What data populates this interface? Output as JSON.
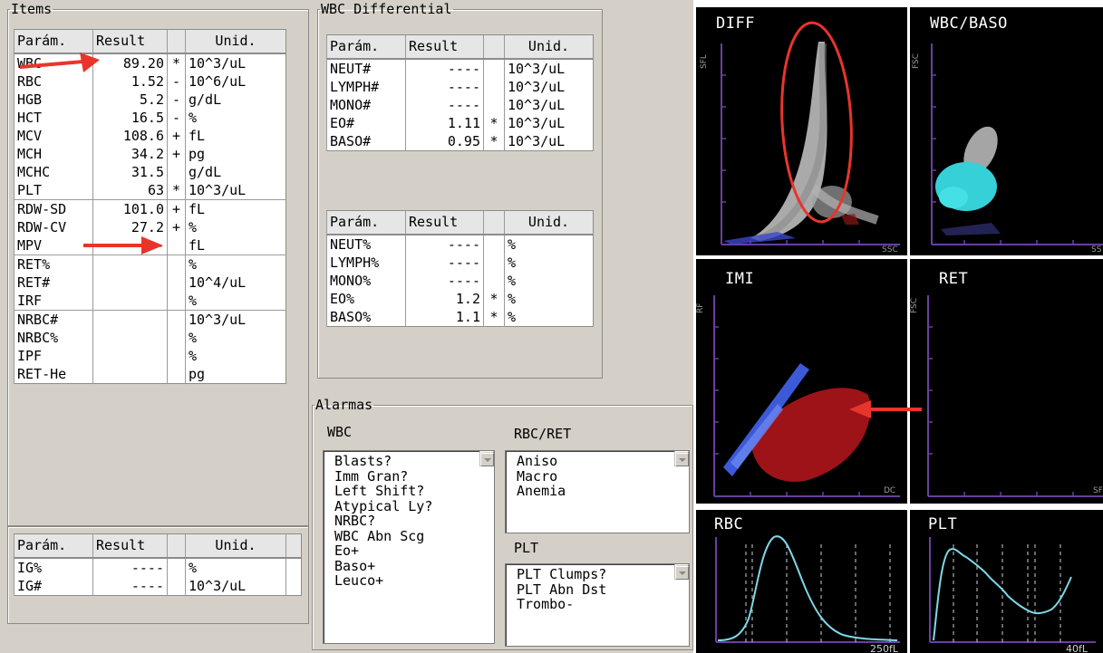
{
  "items": {
    "legend": "Items",
    "headers": [
      "Parám.",
      "Result",
      "",
      "Unid."
    ],
    "rows": [
      {
        "param": "WBC",
        "result": "89.20",
        "flag": "*",
        "unit": "10^3/uL"
      },
      {
        "param": "RBC",
        "result": "1.52",
        "flag": "-",
        "unit": "10^6/uL"
      },
      {
        "param": "HGB",
        "result": "5.2",
        "flag": "-",
        "unit": "g/dL"
      },
      {
        "param": "HCT",
        "result": "16.5",
        "flag": "-",
        "unit": "%"
      },
      {
        "param": "MCV",
        "result": "108.6",
        "flag": "+",
        "unit": "fL"
      },
      {
        "param": "MCH",
        "result": "34.2",
        "flag": "+",
        "unit": "pg"
      },
      {
        "param": "MCHC",
        "result": "31.5",
        "flag": "",
        "unit": "g/dL"
      },
      {
        "param": "PLT",
        "result": "63",
        "flag": "*",
        "unit": "10^3/uL"
      },
      {
        "param": "RDW-SD",
        "result": "101.0",
        "flag": "+",
        "unit": "fL"
      },
      {
        "param": "RDW-CV",
        "result": "27.2",
        "flag": "+",
        "unit": "%"
      },
      {
        "param": "MPV",
        "result": "----",
        "flag": "",
        "unit": "fL"
      },
      {
        "param": "RET%",
        "result": "",
        "flag": "",
        "unit": "%"
      },
      {
        "param": "RET#",
        "result": "",
        "flag": "",
        "unit": "10^4/uL"
      },
      {
        "param": "IRF",
        "result": "",
        "flag": "",
        "unit": "%"
      },
      {
        "param": "NRBC#",
        "result": "",
        "flag": "",
        "unit": "10^3/uL"
      },
      {
        "param": "NRBC%",
        "result": "",
        "flag": "",
        "unit": "%"
      },
      {
        "param": "IPF",
        "result": "",
        "flag": "",
        "unit": "%"
      },
      {
        "param": "RET-He",
        "result": "",
        "flag": "",
        "unit": "pg"
      }
    ]
  },
  "ig": {
    "headers": [
      "Parám.",
      "Result",
      "",
      "Unid."
    ],
    "rows": [
      {
        "param": "IG%",
        "result": "----",
        "flag": "",
        "unit": "%"
      },
      {
        "param": "IG#",
        "result": "----",
        "flag": "",
        "unit": "10^3/uL"
      }
    ]
  },
  "wbc_diff": {
    "legend": "WBC Differential",
    "abs": {
      "headers": [
        "Parám.",
        "Result",
        "",
        "Unid."
      ],
      "rows": [
        {
          "param": "NEUT#",
          "result": "----",
          "flag": "",
          "unit": "10^3/uL"
        },
        {
          "param": "LYMPH#",
          "result": "----",
          "flag": "",
          "unit": "10^3/uL"
        },
        {
          "param": "MONO#",
          "result": "----",
          "flag": "",
          "unit": "10^3/uL"
        },
        {
          "param": "EO#",
          "result": "1.11",
          "flag": "*",
          "unit": "10^3/uL"
        },
        {
          "param": "BASO#",
          "result": "0.95",
          "flag": "*",
          "unit": "10^3/uL"
        }
      ]
    },
    "pct": {
      "headers": [
        "Parám.",
        "Result",
        "",
        "Unid."
      ],
      "rows": [
        {
          "param": "NEUT%",
          "result": "----",
          "flag": "",
          "unit": "%"
        },
        {
          "param": "LYMPH%",
          "result": "----",
          "flag": "",
          "unit": "%"
        },
        {
          "param": "MONO%",
          "result": "----",
          "flag": "",
          "unit": "%"
        },
        {
          "param": "EO%",
          "result": "1.2",
          "flag": "*",
          "unit": "%"
        },
        {
          "param": "BASO%",
          "result": "1.1",
          "flag": "*",
          "unit": "%"
        }
      ]
    }
  },
  "alarms": {
    "legend": "Alarmas",
    "wbc_label": "WBC",
    "wbc_items": [
      "Blasts?",
      "Imm Gran?",
      "Left Shift?",
      "Atypical Ly?",
      "NRBC?",
      "WBC Abn Scg",
      "Eo+",
      "Baso+",
      "Leuco+"
    ],
    "rbc_label": "RBC/RET",
    "rbc_items": [
      "Aniso",
      "Macro",
      "Anemia"
    ],
    "plt_label": "PLT",
    "plt_items": [
      "PLT Clumps?",
      "PLT Abn Dst",
      "Trombo-"
    ]
  },
  "plots": {
    "diff": {
      "title": "DIFF",
      "y_label": "SFL",
      "x_label": "SSC"
    },
    "wbc_baso": {
      "title": "WBC/BASO",
      "y_label": "FSC",
      "x_label": "SS"
    },
    "imi": {
      "title": "IMI",
      "y_label": "RF",
      "x_label": "DC"
    },
    "ret": {
      "title": "RET",
      "y_label": "FSC",
      "x_label": "SF"
    },
    "rbc": {
      "title": "RBC",
      "x_label": "250fL"
    },
    "plt": {
      "title": "PLT",
      "x_label": "40fL"
    }
  },
  "colors": {
    "annotation_red": "#e8352b",
    "histogram": "#7fd8e8",
    "axis": "#6a3fa0",
    "baso_cyan": "#35d0d8",
    "imi_blue": "#3c5ad8",
    "imi_red": "#b8161c"
  }
}
